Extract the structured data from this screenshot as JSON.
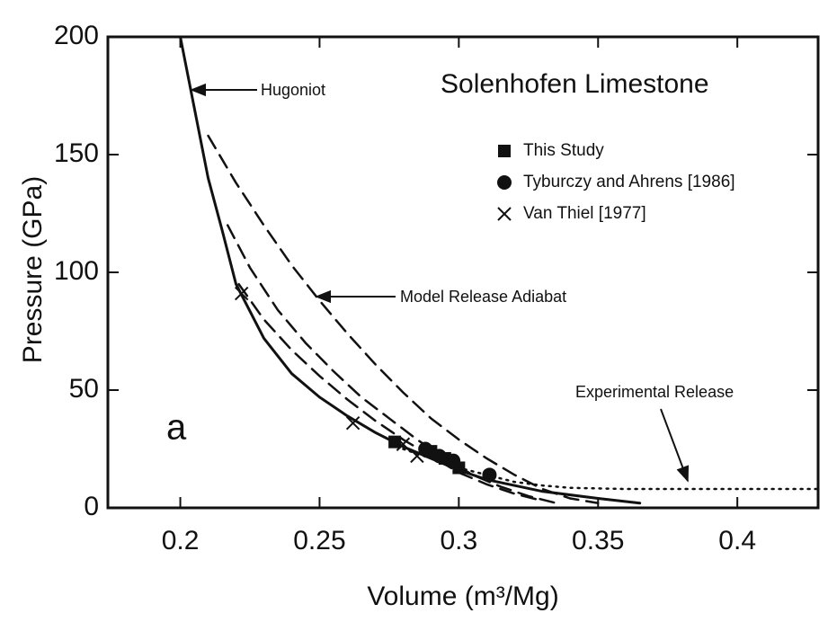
{
  "chart_data": {
    "type": "line",
    "title": "Solenhofen Limestone",
    "xlabel": "Volume (m³/Mg)",
    "ylabel": "Pressure (GPa)",
    "panel": "a",
    "annotations": [
      "Hugoniot",
      "Model Release Adiabat",
      "Experimental Release"
    ],
    "xlim": [
      0.174,
      0.429
    ],
    "xticks": [
      0.2,
      0.25,
      0.3,
      0.35,
      0.4
    ],
    "ylim": [
      0,
      200
    ],
    "yticks": [
      0,
      50,
      100,
      150,
      200
    ],
    "lines": [
      {
        "style": "solid",
        "color": "#111",
        "x": [
          0.2,
          0.205,
          0.21,
          0.215,
          0.22,
          0.23,
          0.24,
          0.25,
          0.26,
          0.27,
          0.28,
          0.29,
          0.3,
          0.31,
          0.33,
          0.35,
          0.365
        ],
        "values": [
          200,
          170,
          140,
          118,
          95,
          72,
          57,
          47,
          39,
          32,
          26,
          21,
          16,
          12,
          7,
          4,
          2
        ]
      },
      {
        "style": "dashed",
        "color": "#111",
        "x": [
          0.21,
          0.22,
          0.23,
          0.24,
          0.25,
          0.26,
          0.27,
          0.28,
          0.29,
          0.3,
          0.31,
          0.32,
          0.33,
          0.34,
          0.35
        ],
        "values": [
          158,
          138,
          120,
          103,
          88,
          74,
          61,
          49,
          38,
          29,
          21,
          14,
          8,
          4,
          2
        ]
      },
      {
        "style": "dashed",
        "color": "#111",
        "x": [
          0.217,
          0.225,
          0.235,
          0.245,
          0.255,
          0.265,
          0.275,
          0.285,
          0.295,
          0.305,
          0.315,
          0.325,
          0.335
        ],
        "values": [
          120,
          102,
          84,
          70,
          58,
          47,
          38,
          29,
          21,
          14,
          9,
          5,
          2
        ]
      },
      {
        "style": "dashed",
        "color": "#111",
        "x": [
          0.221,
          0.23,
          0.24,
          0.25,
          0.26,
          0.27,
          0.28,
          0.29,
          0.3,
          0.31,
          0.32,
          0.33
        ],
        "values": [
          95,
          80,
          67,
          56,
          46,
          37,
          29,
          22,
          15,
          10,
          6,
          3
        ]
      },
      {
        "style": "dotted",
        "color": "#111",
        "x": [
          0.28,
          0.29,
          0.3,
          0.31,
          0.32,
          0.33,
          0.34,
          0.36,
          0.38,
          0.429
        ],
        "values": [
          25,
          21,
          17,
          14,
          11,
          9.5,
          8.5,
          8,
          8,
          8
        ]
      }
    ],
    "series": [
      {
        "name": "This Study",
        "marker": "square",
        "color": "#111",
        "x": [
          0.277,
          0.29,
          0.295,
          0.3
        ],
        "values": [
          28,
          24,
          21,
          17
        ]
      },
      {
        "name": "Tyburczy and Ahrens [1986]",
        "marker": "circle",
        "color": "#111",
        "x": [
          0.288,
          0.293,
          0.298,
          0.311
        ],
        "values": [
          25,
          22,
          20,
          14
        ]
      },
      {
        "name": "Van Thiel [1977]",
        "marker": "cross",
        "color": "#111",
        "x": [
          0.222,
          0.262,
          0.28,
          0.285
        ],
        "values": [
          91,
          36,
          27,
          22
        ]
      }
    ]
  }
}
